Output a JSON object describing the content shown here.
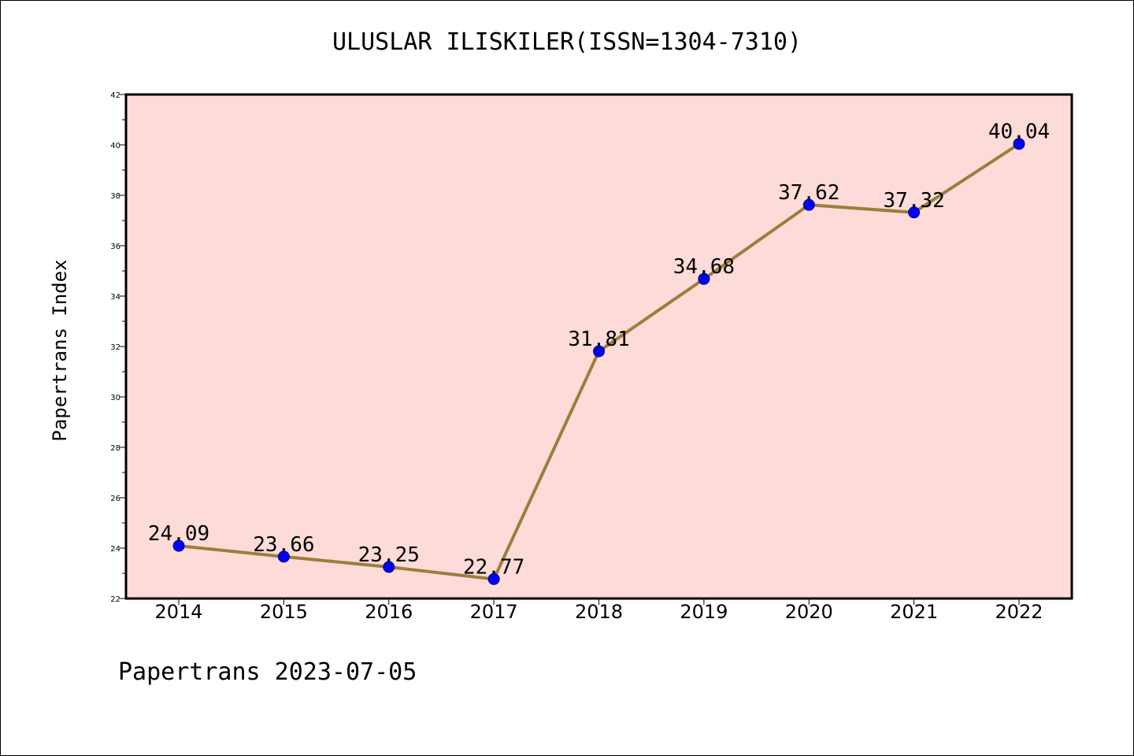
{
  "chart_data": {
    "type": "line",
    "title": "ULUSLAR ILISKILER(ISSN=1304-7310)",
    "ylabel": "Papertrans Index",
    "xlabel": "",
    "x": [
      "2014",
      "2015",
      "2016",
      "2017",
      "2018",
      "2019",
      "2020",
      "2021",
      "2022"
    ],
    "series": [
      {
        "values": [
          24.09,
          23.66,
          23.25,
          22.77,
          31.81,
          34.68,
          37.62,
          37.32,
          40.04
        ]
      }
    ],
    "data_labels": [
      "24.09",
      "23.66",
      "23.25",
      "22.77",
      "31.81",
      "34.68",
      "37.62",
      "37.32",
      "40.04"
    ],
    "ylim": [
      22,
      42
    ],
    "yticks": [
      "22",
      "24",
      "26",
      "28",
      "30",
      "32",
      "34",
      "36",
      "38",
      "40",
      "42"
    ],
    "grid": false,
    "colors": {
      "plot_background": "#FDDBD8",
      "line": "#9B7E3C",
      "marker": "#0000FF"
    }
  },
  "footer": "Papertrans 2023-07-05"
}
